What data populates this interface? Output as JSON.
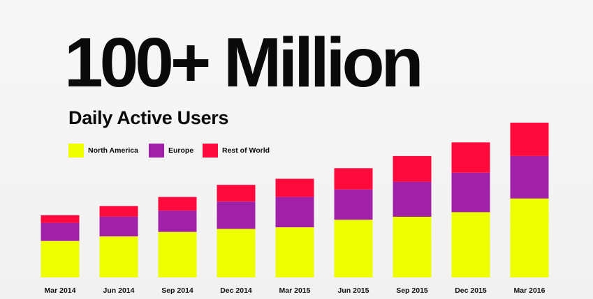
{
  "headline": "100+ Million",
  "subtitle": "Daily Active Users",
  "legend": [
    {
      "label": "North America",
      "color": "#eeff00"
    },
    {
      "label": "Europe",
      "color": "#a020a8"
    },
    {
      "label": "Rest of World",
      "color": "#ff0a3c"
    }
  ],
  "chart_data": {
    "type": "bar",
    "stacked": true,
    "categories": [
      "Mar 2014",
      "Jun 2014",
      "Sep 2014",
      "Dec 2014",
      "Mar 2015",
      "Jun 2015",
      "Sep 2015",
      "Dec 2015",
      "Mar 2016"
    ],
    "series": [
      {
        "name": "North America",
        "color": "#eeff00",
        "values": [
          24,
          27,
          30,
          32,
          33,
          38,
          40,
          43,
          52
        ]
      },
      {
        "name": "Europe",
        "color": "#a020a8",
        "values": [
          12,
          13,
          14,
          18,
          20,
          20,
          23,
          26,
          28
        ]
      },
      {
        "name": "Rest of World",
        "color": "#ff0a3c",
        "values": [
          5,
          7,
          9,
          11,
          12,
          14,
          17,
          20,
          22
        ]
      }
    ],
    "title": "100+ Million",
    "subtitle": "Daily Active Users",
    "xlabel": "",
    "ylabel": "",
    "ylim": [
      0,
      102
    ],
    "grid": false,
    "legend_position": "top-left"
  }
}
